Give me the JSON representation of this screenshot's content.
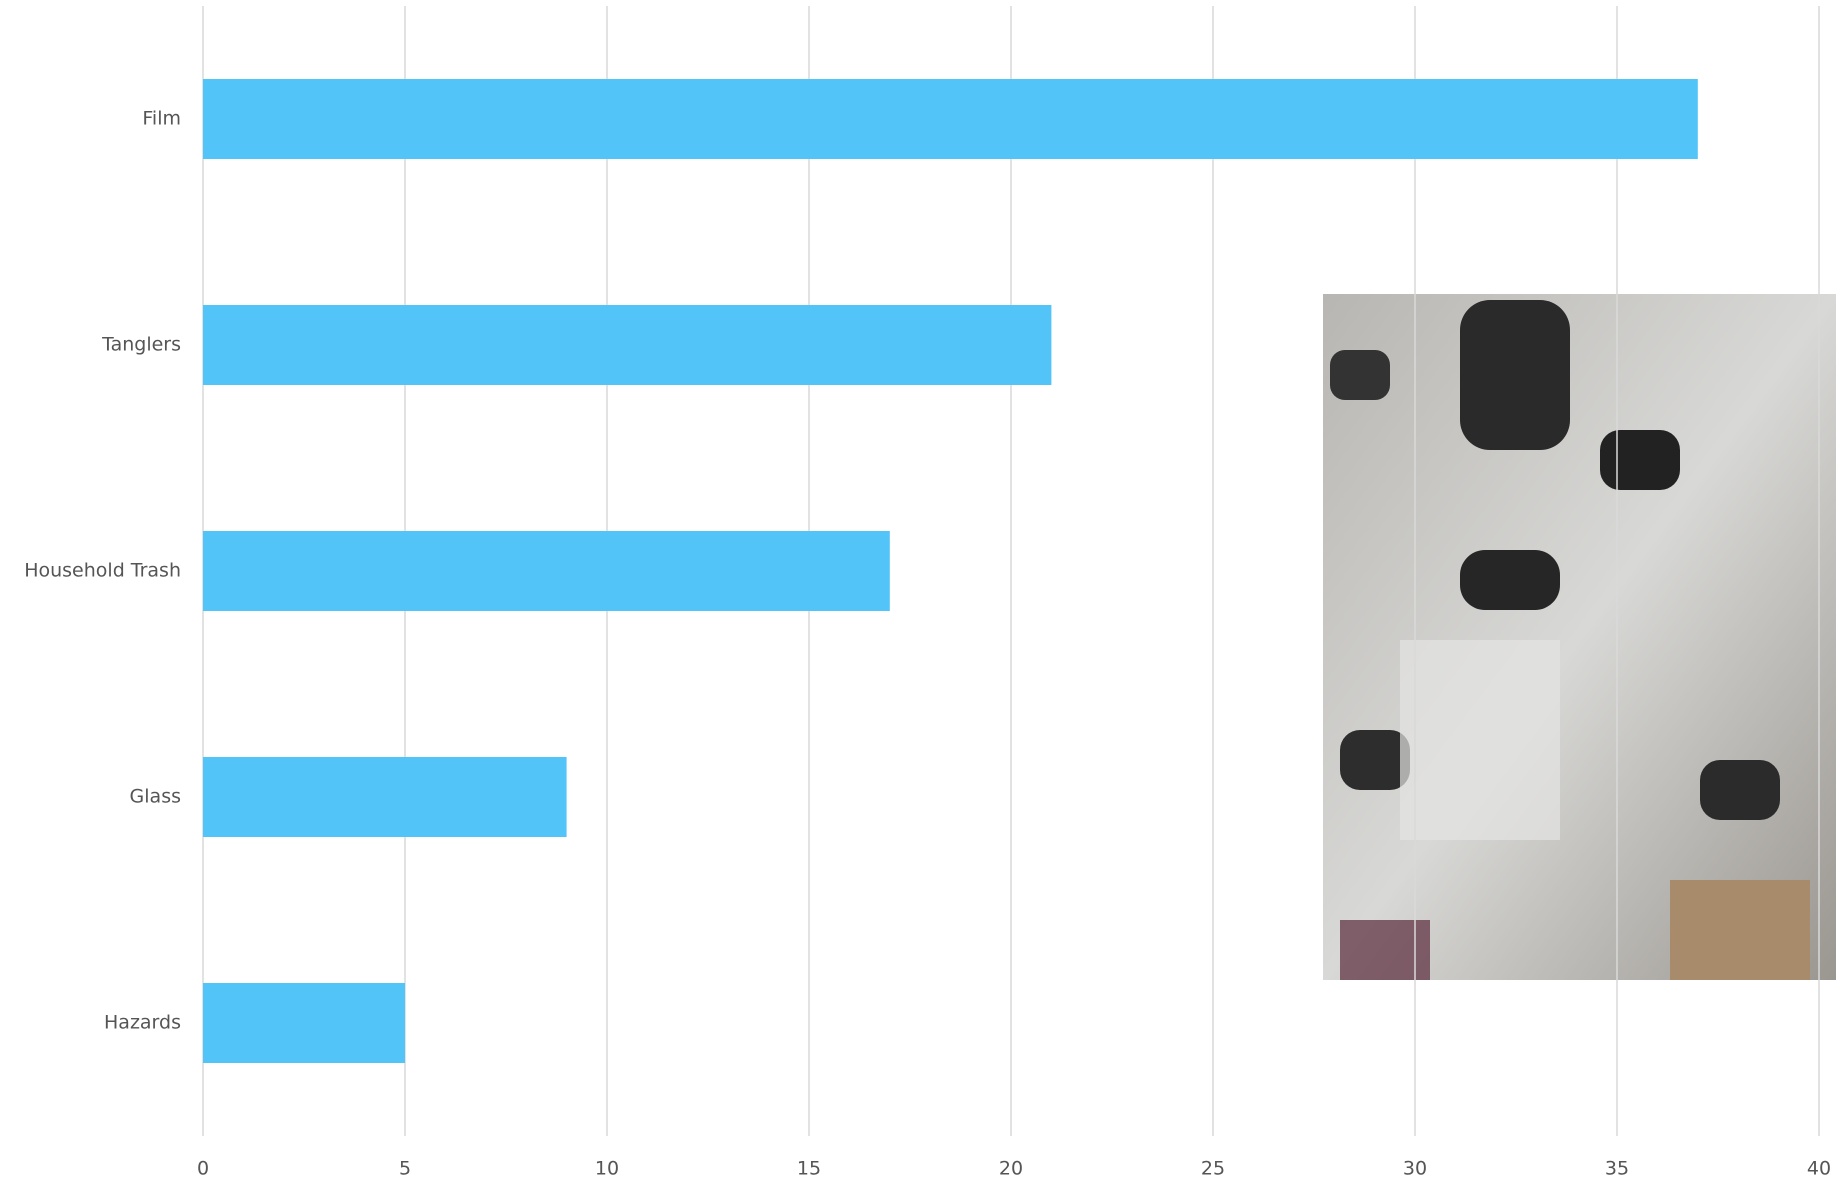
{
  "chart_data": {
    "type": "bar",
    "orientation": "horizontal",
    "categories": [
      "Film",
      "Tanglers",
      "Household Trash",
      "Glass",
      "Hazards"
    ],
    "values": [
      37,
      21,
      17,
      9,
      5
    ],
    "color": "#52c4f8",
    "xlim": [
      0,
      40
    ],
    "xticks": [
      0,
      5,
      10,
      15,
      20,
      25,
      30,
      35,
      40
    ],
    "grid": true
  }
}
